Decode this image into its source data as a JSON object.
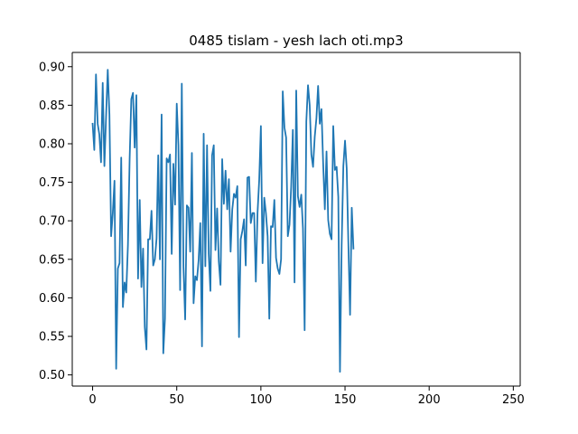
{
  "chart_data": {
    "type": "line",
    "title": "0485 tislam - yesh lach oti.mp3",
    "xlabel": "",
    "ylabel": "",
    "xlim": [
      -12.1,
      254.1
    ],
    "ylim": [
      0.4855,
      0.9185
    ],
    "xticks": [
      0,
      50,
      100,
      150,
      200,
      250
    ],
    "yticks": [
      0.5,
      0.55,
      0.6,
      0.65,
      0.7,
      0.75,
      0.8,
      0.85,
      0.9
    ],
    "xtick_labels": [
      "0",
      "50",
      "100",
      "150",
      "200",
      "250"
    ],
    "ytick_labels": [
      "0.50",
      "0.55",
      "0.60",
      "0.65",
      "0.70",
      "0.75",
      "0.80",
      "0.85",
      "0.90"
    ],
    "grid": false,
    "legend": "none",
    "series": [
      {
        "color": "#1f77b4",
        "x_start": 0,
        "x_step": 1,
        "values": [
          0.826,
          0.792,
          0.89,
          0.826,
          0.812,
          0.776,
          0.879,
          0.771,
          0.835,
          0.896,
          0.838,
          0.68,
          0.71,
          0.752,
          0.508,
          0.638,
          0.645,
          0.782,
          0.588,
          0.62,
          0.607,
          0.669,
          0.78,
          0.858,
          0.866,
          0.795,
          0.863,
          0.625,
          0.727,
          0.614,
          0.664,
          0.562,
          0.533,
          0.676,
          0.676,
          0.713,
          0.642,
          0.65,
          0.677,
          0.785,
          0.65,
          0.838,
          0.528,
          0.573,
          0.781,
          0.776,
          0.786,
          0.657,
          0.774,
          0.721,
          0.852,
          0.798,
          0.61,
          0.878,
          0.64,
          0.572,
          0.72,
          0.717,
          0.66,
          0.788,
          0.593,
          0.628,
          0.623,
          0.649,
          0.697,
          0.537,
          0.813,
          0.641,
          0.798,
          0.657,
          0.609,
          0.785,
          0.798,
          0.662,
          0.716,
          0.647,
          0.617,
          0.78,
          0.722,
          0.765,
          0.715,
          0.754,
          0.66,
          0.715,
          0.735,
          0.73,
          0.745,
          0.549,
          0.676,
          0.687,
          0.702,
          0.642,
          0.756,
          0.757,
          0.697,
          0.71,
          0.71,
          0.621,
          0.71,
          0.753,
          0.823,
          0.645,
          0.73,
          0.71,
          0.68,
          0.573,
          0.693,
          0.692,
          0.727,
          0.652,
          0.638,
          0.631,
          0.65,
          0.868,
          0.821,
          0.808,
          0.68,
          0.695,
          0.744,
          0.818,
          0.62,
          0.869,
          0.732,
          0.718,
          0.734,
          0.69,
          0.558,
          0.829,
          0.876,
          0.85,
          0.786,
          0.77,
          0.809,
          0.833,
          0.875,
          0.826,
          0.845,
          0.775,
          0.715,
          0.79,
          0.701,
          0.683,
          0.676,
          0.823,
          0.766,
          0.77,
          0.731,
          0.504,
          0.668,
          0.771,
          0.804,
          0.768,
          0.669,
          0.578,
          0.717,
          0.664
        ]
      }
    ]
  }
}
